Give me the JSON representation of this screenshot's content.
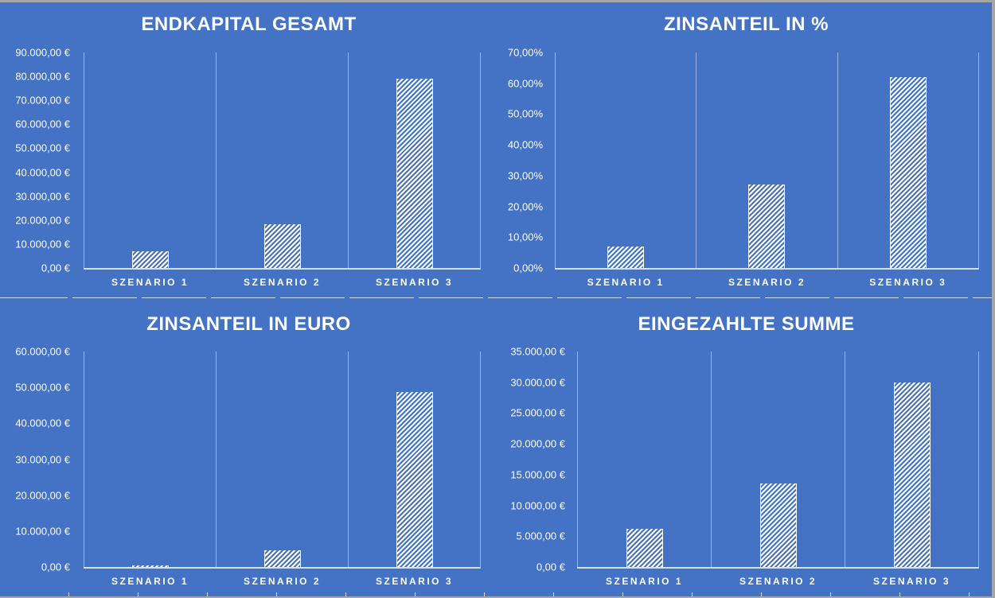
{
  "app": {
    "description": "Excel worksheet area showing four white hatched column charts on a blue background",
    "categories": [
      "SZENARIO 1",
      "SZENARIO 2",
      "SZENARIO 3"
    ]
  },
  "colors": {
    "background": "#4472C4",
    "bar_hatch": "#FFFFFF",
    "axis_line": "#DCE6F4",
    "text": "#FFFFFF",
    "window_edge": "#A6A6A6"
  },
  "chart_data": [
    {
      "type": "bar",
      "title": "ENDKAPITAL GESAMT",
      "categories": [
        "SZENARIO 1",
        "SZENARIO 2",
        "SZENARIO 3"
      ],
      "values": [
        7000,
        18400,
        79000
      ],
      "unit": "EUR",
      "ylim": [
        0,
        90000
      ],
      "ytick_step": 10000,
      "ytick_labels": [
        "90.000,00 €",
        "80.000,00 €",
        "70.000,00 €",
        "60.000,00 €",
        "50.000,00 €",
        "40.000,00 €",
        "30.000,00 €",
        "20.000,00 €",
        "10.000,00 €",
        "0,00 €"
      ],
      "grid": "vertical-category-lines-only",
      "legend": "none",
      "bar_style": "white-diagonal-hatch"
    },
    {
      "type": "bar",
      "title": "ZINSANTEIL IN %",
      "categories": [
        "SZENARIO 1",
        "SZENARIO 2",
        "SZENARIO 3"
      ],
      "values": [
        7,
        27,
        62
      ],
      "unit": "%",
      "ylim": [
        0,
        70
      ],
      "ytick_step": 10,
      "ytick_labels": [
        "70,00%",
        "60,00%",
        "50,00%",
        "40,00%",
        "30,00%",
        "20,00%",
        "10,00%",
        "0,00%"
      ],
      "grid": "vertical-category-lines-only",
      "legend": "none",
      "bar_style": "white-diagonal-hatch"
    },
    {
      "type": "bar",
      "title": "ZINSANTEIL IN EURO",
      "categories": [
        "SZENARIO 1",
        "SZENARIO 2",
        "SZENARIO 3"
      ],
      "values": [
        500,
        4700,
        48800
      ],
      "unit": "EUR",
      "ylim": [
        0,
        60000
      ],
      "ytick_step": 10000,
      "ytick_labels": [
        "60.000,00 €",
        "50.000,00 €",
        "40.000,00 €",
        "30.000,00 €",
        "20.000,00 €",
        "10.000,00 €",
        "0,00 €"
      ],
      "grid": "vertical-category-lines-only",
      "legend": "none",
      "bar_style": "white-diagonal-hatch"
    },
    {
      "type": "bar",
      "title": "EINGEZAHLTE SUMME",
      "categories": [
        "SZENARIO 1",
        "SZENARIO 2",
        "SZENARIO 3"
      ],
      "values": [
        6200,
        13500,
        30000
      ],
      "unit": "EUR",
      "ylim": [
        0,
        35000
      ],
      "ytick_step": 5000,
      "ytick_labels": [
        "35.000,00 €",
        "30.000,00 €",
        "25.000,00 €",
        "20.000,00 €",
        "15.000,00 €",
        "10.000,00 €",
        "5.000,00 €",
        "0,00 €"
      ],
      "grid": "vertical-category-lines-only",
      "legend": "none",
      "bar_style": "white-diagonal-hatch"
    }
  ]
}
